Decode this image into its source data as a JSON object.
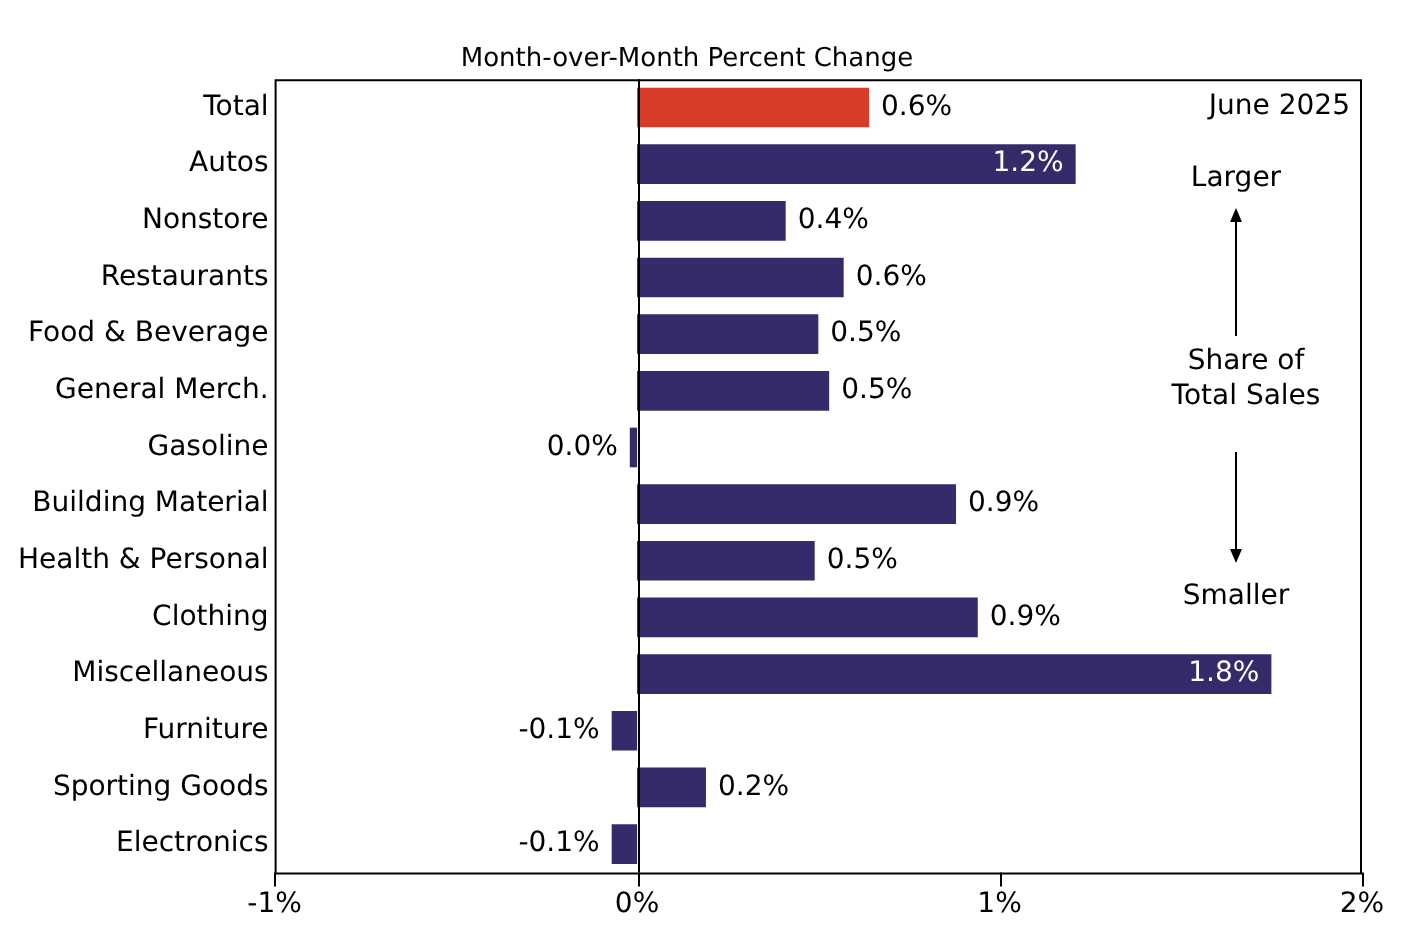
{
  "chart_data": {
    "type": "bar",
    "orientation": "horizontal",
    "title": "Month-over-Month Percent Change",
    "categories": [
      "Total",
      "Autos",
      "Nonstore",
      "Restaurants",
      "Food & Beverage",
      "General Merch.",
      "Gasoline",
      "Building Material",
      "Health & Personal",
      "Clothing",
      "Miscellaneous",
      "Furniture",
      "Sporting Goods",
      "Electronics"
    ],
    "values": [
      0.64,
      1.21,
      0.41,
      0.57,
      0.5,
      0.53,
      -0.02,
      0.88,
      0.49,
      0.94,
      1.75,
      -0.07,
      0.19,
      -0.07
    ],
    "colors": [
      "#d63c27",
      "#372a6a",
      "#372a6a",
      "#372a6a",
      "#372a6a",
      "#372a6a",
      "#372a6a",
      "#372a6a",
      "#372a6a",
      "#372a6a",
      "#372a6a",
      "#372a6a",
      "#372a6a",
      "#372a6a"
    ],
    "value_labels": [
      "0.6%",
      "1.2%",
      "0.4%",
      "0.6%",
      "0.5%",
      "0.5%",
      "0.0%",
      "0.9%",
      "0.5%",
      "0.9%",
      "1.8%",
      "-0.1%",
      "0.2%",
      "-0.1%"
    ],
    "xlim": [
      -1,
      2
    ],
    "xticks": [
      {
        "value": -1,
        "label": "-1%"
      },
      {
        "value": 0,
        "label": "0%"
      },
      {
        "value": 1,
        "label": "1%"
      },
      {
        "value": 2,
        "label": "2%"
      }
    ],
    "grid": false,
    "legend": false,
    "ref_lines": [
      {
        "axis": "x",
        "value": 0,
        "color": "#000000"
      }
    ],
    "annotations": [
      "June 2025",
      "Larger",
      "Share of Total Sales",
      "Smaller"
    ]
  }
}
